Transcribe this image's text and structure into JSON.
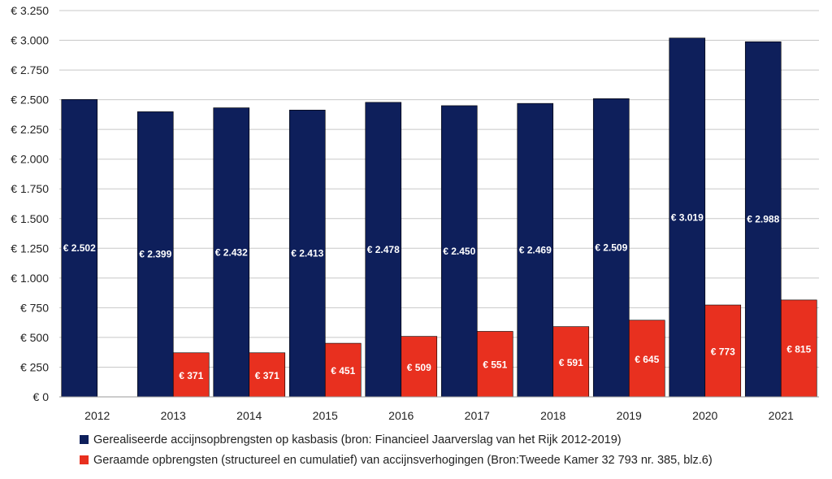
{
  "chart_data": {
    "type": "bar",
    "categories": [
      "2012",
      "2013",
      "2014",
      "2015",
      "2016",
      "2017",
      "2018",
      "2019",
      "2020",
      "2021"
    ],
    "ylim": [
      0,
      3250
    ],
    "y_ticks": [
      0,
      250,
      500,
      750,
      1000,
      1250,
      1500,
      1750,
      2000,
      2250,
      2500,
      2750,
      3000,
      3250
    ],
    "y_tick_labels": [
      "€ 0",
      "€ 250",
      "€ 500",
      "€ 750",
      "€ 1.000",
      "€ 1.250",
      "€ 1.500",
      "€ 1.750",
      "€ 2.000",
      "€ 2.250",
      "€ 2.500",
      "€ 2.750",
      "€ 3.000",
      "€ 3.250"
    ],
    "grid": true,
    "legend_position": "bottom",
    "series": [
      {
        "name": "Gerealiseerde accijnsopbrengsten op kasbasis (bron: Financieel Jaarverslag van het Rijk 2012-2019)",
        "color": "#0e1f5b",
        "values": [
          2502,
          2399,
          2432,
          2413,
          2478,
          2450,
          2469,
          2509,
          3019,
          2988
        ],
        "labels": [
          "€ 2.502",
          "€ 2.399",
          "€ 2.432",
          "€ 2.413",
          "€ 2.478",
          "€ 2.450",
          "€ 2.469",
          "€ 2.509",
          "€ 3.019",
          "€ 2.988"
        ]
      },
      {
        "name": "Geraamde opbrengsten (structureel en cumulatief) van accijnsverhogingen (Bron:Tweede Kamer 32 793 nr. 385, blz.6)",
        "color": "#e8301f",
        "values": [
          null,
          371,
          371,
          451,
          509,
          551,
          591,
          645,
          773,
          815
        ],
        "labels": [
          "",
          "€ 371",
          "€ 371",
          "€ 451",
          "€ 509",
          "€ 551",
          "€ 591",
          "€ 645",
          "€ 773",
          "€ 815"
        ]
      }
    ]
  }
}
